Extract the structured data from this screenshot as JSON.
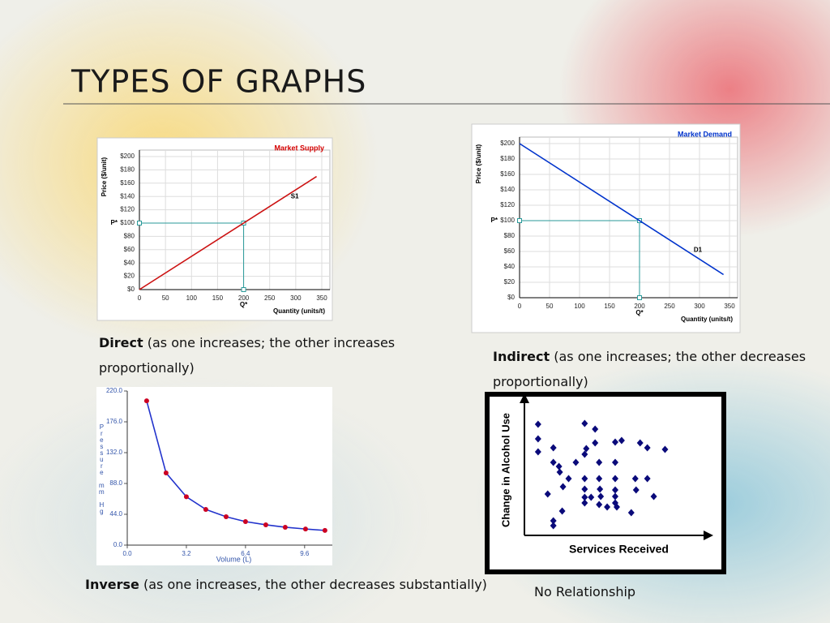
{
  "title": "TYPES OF GRAPHS",
  "captions": [
    {
      "term": "Direct",
      "text_lines": [
        "(as one increases; the other increases",
        "proportionally)"
      ]
    },
    {
      "term": "Indirect",
      "text_lines": [
        "(as one increases; the other decreases",
        "proportionally)"
      ]
    },
    {
      "term": "Inverse",
      "text_lines": [
        "(as one increases, the other decreases substantially)"
      ]
    },
    {
      "text_lines": [
        "No Relationship"
      ]
    }
  ],
  "chart_data": [
    {
      "type": "line",
      "title": "Market Supply",
      "title_color": "#d40000",
      "x_label": "Quantity (units/t)",
      "y_label": "Price ($/unit)",
      "series": [
        {
          "name": "S1",
          "color": "#cc1111",
          "x": [
            0,
            340
          ],
          "values": [
            0,
            170
          ]
        }
      ],
      "highlight": {
        "x": 200,
        "y": 100,
        "x_note": "Q*",
        "y_note": "P*"
      },
      "xlim": [
        0,
        350
      ],
      "xticks": [
        0,
        50,
        100,
        150,
        200,
        250,
        300,
        350
      ],
      "ylim": [
        0,
        200
      ],
      "yticks": [
        {
          "value": 0,
          "label": "$0"
        },
        {
          "value": 20,
          "label": "$20"
        },
        {
          "value": 40,
          "label": "$40"
        },
        {
          "value": 60,
          "label": "$60"
        },
        {
          "value": 80,
          "label": "$80"
        },
        {
          "value": 100,
          "label": "$100"
        },
        {
          "value": 120,
          "label": "$120"
        },
        {
          "value": 140,
          "label": "$140"
        },
        {
          "value": 160,
          "label": "$160"
        },
        {
          "value": 180,
          "label": "$180"
        },
        {
          "value": 200,
          "label": "$200"
        }
      ],
      "grid": true
    },
    {
      "type": "line",
      "title": "Market Demand",
      "title_color": "#0033cc",
      "x_label": "Quantity (units/t)",
      "y_label": "Price ($/unit)",
      "series": [
        {
          "name": "D1",
          "color": "#0033cc",
          "x": [
            0,
            340
          ],
          "values": [
            200,
            30
          ]
        }
      ],
      "highlight": {
        "x": 200,
        "y": 100,
        "x_note": "Q*",
        "y_note": "P*"
      },
      "xlim": [
        0,
        350
      ],
      "xticks": [
        0,
        50,
        100,
        150,
        200,
        250,
        300,
        350
      ],
      "ylim": [
        0,
        200
      ],
      "yticks": [
        {
          "value": 0,
          "label": "$0"
        },
        {
          "value": 20,
          "label": "$20"
        },
        {
          "value": 40,
          "label": "$40"
        },
        {
          "value": 60,
          "label": "$60"
        },
        {
          "value": 80,
          "label": "$80"
        },
        {
          "value": 100,
          "label": "$100"
        },
        {
          "value": 120,
          "label": "$120"
        },
        {
          "value": 140,
          "label": "$140"
        },
        {
          "value": 160,
          "label": "$160"
        },
        {
          "value": 180,
          "label": "$180"
        },
        {
          "value": 200,
          "label": "$200"
        }
      ],
      "grid": true
    },
    {
      "type": "line",
      "x_label": "Volume (L)",
      "y_label": "Pressure mm Hg",
      "series": [
        {
          "color": "#cc0022",
          "line_color": "#2233cc",
          "markers": true,
          "x": [
            1.05,
            2.1,
            3.2,
            4.25,
            5.35,
            6.4,
            7.5,
            8.55,
            9.65,
            10.7
          ],
          "values": [
            206,
            103,
            69,
            51,
            40.5,
            33.6,
            29,
            25.5,
            23,
            21
          ]
        }
      ],
      "xlim": [
        0,
        11.1
      ],
      "xticks": [
        {
          "value": 0,
          "label": "0.0"
        },
        {
          "value": 3.2,
          "label": "3.2"
        },
        {
          "value": 6.4,
          "label": "6.4"
        },
        {
          "value": 9.6,
          "label": "9.6"
        }
      ],
      "ylim": [
        0,
        220
      ],
      "yticks": [
        {
          "value": 0,
          "label": "0.0"
        },
        {
          "value": 44,
          "label": "44.0"
        },
        {
          "value": 88,
          "label": "88.0"
        },
        {
          "value": 132,
          "label": "132.0"
        },
        {
          "value": 176,
          "label": "176.0"
        },
        {
          "value": 220,
          "label": "220.0"
        }
      ],
      "grid": false
    },
    {
      "type": "scatter",
      "x_label": "Services Received",
      "y_label": "Change in Alcohol Use",
      "series": [
        {
          "color": "#0a0a7a",
          "x": [
            17,
            17,
            17,
            36,
            75,
            88,
            88,
            77,
            75,
            113,
            121,
            144,
            153,
            175,
            36,
            43,
            44,
            64,
            93,
            113,
            55,
            75,
            93,
            113,
            138,
            153,
            29,
            48,
            75,
            94,
            113,
            139,
            161,
            75,
            83,
            95,
            113,
            113,
            75,
            93,
            103,
            115,
            133,
            47,
            36,
            36
          ],
          "values": [
            137,
            119,
            103,
            108,
            138,
            131,
            114,
            107,
            100,
            115,
            117,
            114,
            108,
            106,
            90,
            85,
            78,
            90,
            90,
            90,
            70,
            70,
            70,
            70,
            70,
            70,
            51,
            60,
            57,
            57,
            56,
            56,
            48,
            47,
            47,
            48,
            48,
            40,
            40,
            38,
            35,
            35,
            28,
            30,
            18,
            12
          ]
        }
      ],
      "xlim": [
        0,
        225
      ],
      "ylim": [
        0,
        165
      ],
      "grid": false
    }
  ]
}
